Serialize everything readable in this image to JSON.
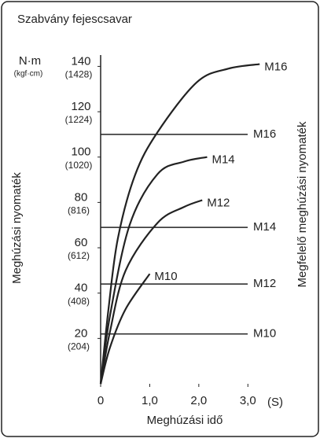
{
  "chart_data": {
    "type": "line",
    "title": "Szabvány fejescsavar",
    "y_unit": "N·m",
    "y_unit_secondary": "(kgf·cm)",
    "ylabel": "Meghúzási nyomaték",
    "y2label": "Megfelelő meghúzási nyomaték",
    "xlabel": "Meghúzási idő",
    "x_unit": "(S)",
    "xlim": [
      0,
      3.3
    ],
    "ylim": [
      0,
      145
    ],
    "xticks": [
      0,
      {
        "value": 1,
        "label": "1,0"
      },
      {
        "value": 2,
        "label": "2,0"
      },
      {
        "value": 3,
        "label": "3,0"
      }
    ],
    "yticks": [
      20,
      40,
      60,
      80,
      100,
      120,
      140
    ],
    "ytick_secondary_labels": [
      "(204)",
      "(408)",
      "(612)",
      "(816)",
      "(1020)",
      "(1224)",
      "(1428)"
    ],
    "color": "#222222",
    "series": [
      {
        "name": "M16",
        "x": [
          0,
          0.16,
          0.35,
          0.7,
          1.16,
          1.96,
          2.6,
          3.24
        ],
        "values": [
          0,
          33,
          64,
          92,
          111,
          133,
          139,
          141
        ]
      },
      {
        "name": "M14",
        "x": [
          0,
          0.19,
          0.59,
          1.16,
          1.7,
          2.17
        ],
        "values": [
          0,
          30,
          70,
          92.5,
          98,
          100
        ]
      },
      {
        "name": "M12",
        "x": [
          0,
          0.19,
          0.51,
          1.16,
          1.7,
          2.07
        ],
        "values": [
          0,
          23,
          50,
          71,
          78,
          81
        ]
      },
      {
        "name": "M10",
        "x": [
          0,
          0.19,
          0.51,
          1.0
        ],
        "values": [
          0,
          16,
          33,
          48.5
        ]
      }
    ],
    "reference_lines": [
      {
        "name": "M16",
        "value": 110
      },
      {
        "name": "M14",
        "value": 69
      },
      {
        "name": "M12",
        "value": 44
      },
      {
        "name": "M10",
        "value": 22
      }
    ]
  }
}
